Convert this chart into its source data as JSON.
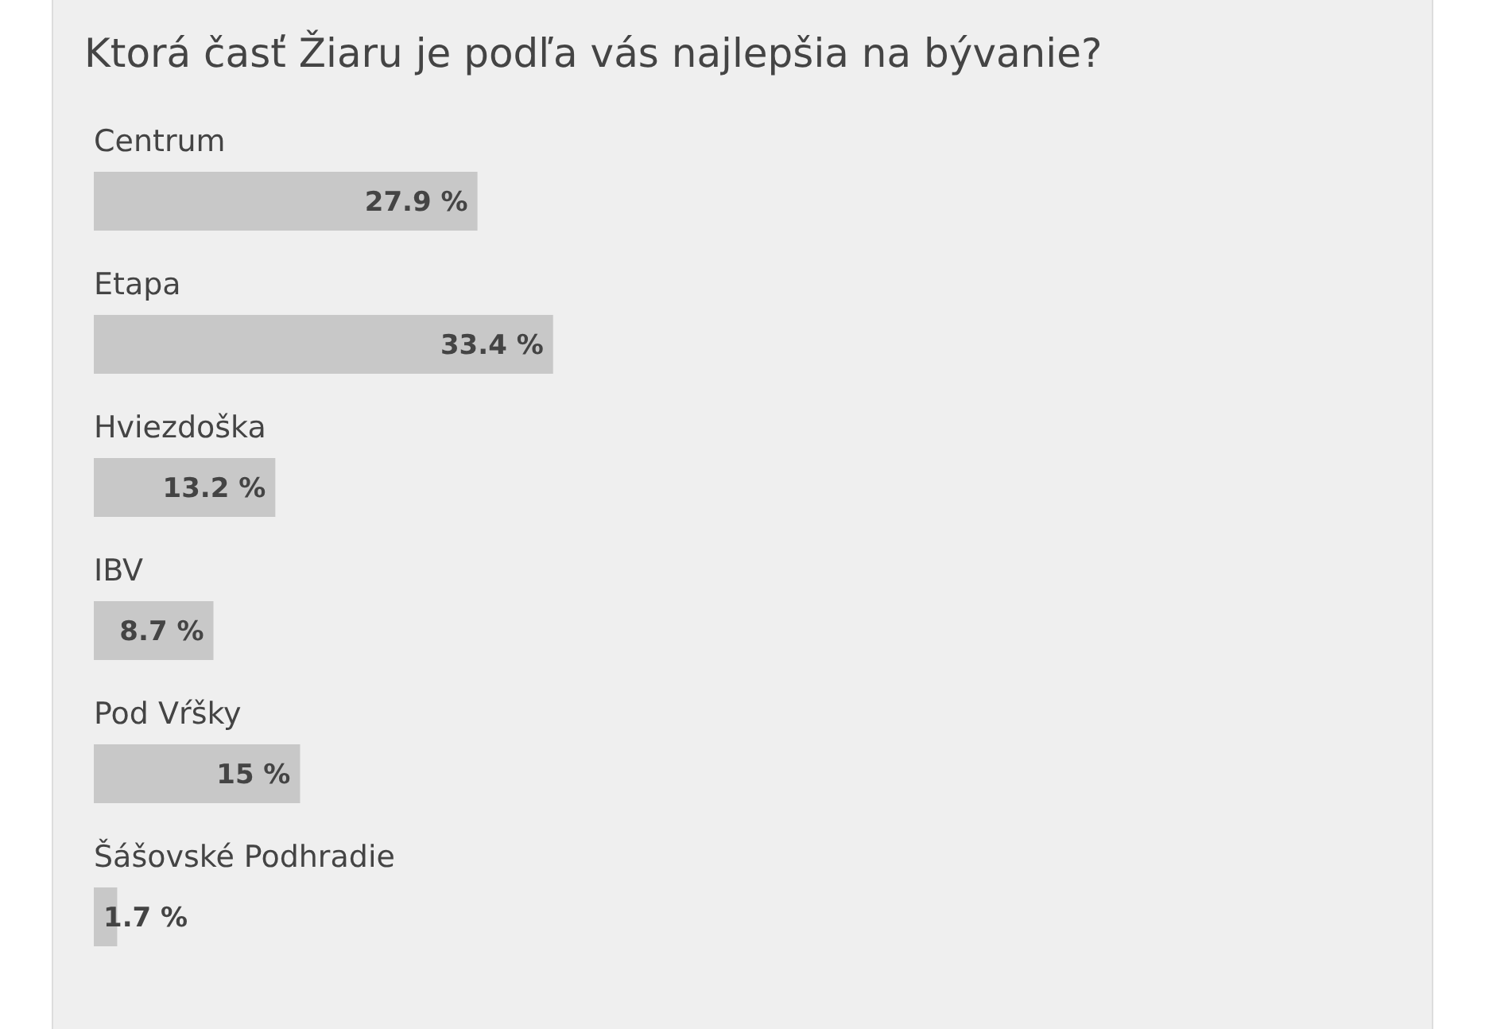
{
  "chart_data": {
    "type": "bar",
    "orientation": "horizontal",
    "title": "Ktorá časť Žiaru je podľa vás najlepšia na bývanie?",
    "categories": [
      "Centrum",
      "Etapa",
      "Hviezdoška",
      "IBV",
      "Pod Vŕšky",
      "Šášovské Podhradie"
    ],
    "values": [
      27.9,
      33.4,
      13.2,
      8.7,
      15,
      1.7
    ],
    "value_labels": [
      "27.9 %",
      "33.4 %",
      "13.2 %",
      "8.7 %",
      "15 %",
      "1.7 %"
    ],
    "color": "#c8c8c8"
  }
}
